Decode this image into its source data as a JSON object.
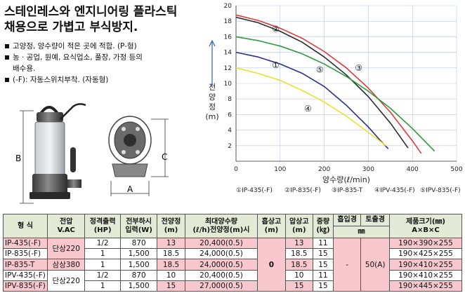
{
  "headline": [
    "스테인레스와 엔지니어링 플라스틱",
    "채용으로 가볍고 부식방지."
  ],
  "bullets": [
    {
      "text": "고양정, 양수량이 적은 곳에 적합. (P-형)"
    },
    {
      "text": "농 · 공업, 원예, 요식업소, 풀장, 가정 등의",
      "cont": "배수용."
    },
    {
      "text": "(-F): 자동스위치부착. (자동형)"
    }
  ],
  "dims": {
    "a": "A",
    "b": "B",
    "c": "C"
  },
  "chart_data": {
    "type": "line",
    "xlabel": "양수량(ℓ/min)",
    "ylabel": [
      "전",
      "양",
      "정",
      "(m)"
    ],
    "xlim": [
      0,
      500
    ],
    "ylim": [
      0,
      20
    ],
    "xticks": [
      "0",
      "100",
      "200",
      "300",
      "400",
      "500"
    ],
    "yticks": [
      "2",
      "4",
      "6",
      "8",
      "10",
      "12",
      "14",
      "16",
      "18",
      "20"
    ],
    "series": [
      {
        "name": "①IP-435(-F)",
        "marker": "①",
        "color": "#2e2e8c",
        "x": [
          0,
          50,
          100,
          150,
          200,
          250,
          300,
          325,
          345
        ],
        "y": [
          14,
          13.4,
          12.5,
          11.3,
          9.6,
          7.2,
          4.4,
          2.8,
          1.6
        ]
      },
      {
        "name": "②IP-835(-F)",
        "marker": "②",
        "color": "#2a2a2a",
        "x": [
          0,
          50,
          100,
          150,
          200,
          250,
          300,
          350,
          390
        ],
        "y": [
          18.5,
          17.8,
          16.7,
          15.3,
          13.4,
          11.1,
          8.3,
          4.9,
          1.7
        ]
      },
      {
        "name": "③IP-835-T",
        "marker": "③",
        "color": "#e23a3a",
        "x": [
          0,
          50,
          100,
          150,
          200,
          250,
          300,
          350,
          400,
          420
        ],
        "y": [
          18.8,
          18.1,
          17.1,
          15.8,
          14.1,
          12.0,
          9.4,
          6.3,
          2.6,
          1.0
        ]
      },
      {
        "name": "④IPV-435(-F)",
        "marker": "④",
        "color": "#e9e22c",
        "x": [
          0,
          50,
          100,
          150,
          200,
          250,
          300,
          340
        ],
        "y": [
          12,
          11.3,
          10.4,
          9.1,
          7.6,
          5.8,
          3.7,
          2.0
        ]
      },
      {
        "name": "⑤IPV-835(-F)",
        "marker": "⑤",
        "color": "#2e9a3e",
        "x": [
          0,
          50,
          100,
          150,
          200,
          250,
          300,
          350,
          400,
          450
        ],
        "y": [
          16,
          15.5,
          14.8,
          13.8,
          12.5,
          10.9,
          9.0,
          6.8,
          4.2,
          1.3
        ]
      }
    ],
    "labels": [
      {
        "text": "①",
        "x": 90,
        "y": 12
      },
      {
        "text": "②",
        "x": 90,
        "y": 16.6
      },
      {
        "text": "③",
        "x": 278,
        "y": 11.6
      },
      {
        "text": "④",
        "x": 163,
        "y": 6.4
      },
      {
        "text": "⑤",
        "x": 190,
        "y": 11.4
      }
    ],
    "legend": [
      "①IP-435(-F)",
      "②IP-835(-F)",
      "③IP-835-T",
      "④IPV-435(-F)",
      "⑤IPV-835(-F)"
    ],
    "grid": true
  },
  "table": {
    "headers": {
      "model": "형 식",
      "voltage": [
        "전압",
        "V.AC"
      ],
      "output": [
        "정격출력",
        "(HP)"
      ],
      "power": [
        "전부하시",
        "입력(W)"
      ],
      "head": [
        "전양정",
        "(m)"
      ],
      "maxflow": [
        "최대양수량",
        "(ℓ/h)전양정(m)시"
      ],
      "suction": [
        "흡상고",
        "(m)"
      ],
      "pressure": [
        "압상고",
        "(m)"
      ],
      "weight": [
        "중량",
        "(㎏)"
      ],
      "inlet": "흡입경",
      "outlet": "토출경",
      "diameter_unit": "㎜",
      "size": [
        "제품크기(㎜)",
        "A×B×C"
      ]
    },
    "voltage_groups": {
      "g1": "단상220",
      "g2": "삼상380",
      "g3": "단상220"
    },
    "suction_value": "0",
    "inlet_value": "-",
    "outlet_value": "50(A)",
    "rows": [
      {
        "model": "IP-435(-F)",
        "output": "1/2",
        "power": "870",
        "head": "13",
        "maxflow": "20,400(0.5)",
        "pressure": "13",
        "weight": "11",
        "size": "190×390×255"
      },
      {
        "model": "IP-835(-F)",
        "output": "1",
        "power": "1,500",
        "head": "18.5",
        "maxflow": "24,000(0.5)",
        "pressure": "18.5",
        "weight": "15",
        "size": "190×425×255"
      },
      {
        "model": "IP-835-T",
        "output": "1",
        "power": "1,500",
        "head": "18.5",
        "maxflow": "24,000(0.5)",
        "pressure": "18.5",
        "weight": "15",
        "size": "190×410×255"
      },
      {
        "model": "IPV-435(-F)",
        "output": "1/2",
        "power": "870",
        "head": "10",
        "maxflow": "20,400(0.5)",
        "pressure": "10",
        "weight": "11",
        "size": "190×410×255"
      },
      {
        "model": "IPV-835(-F)",
        "output": "1",
        "power": "1,500",
        "head": "15",
        "maxflow": "27,000(0.5)",
        "pressure": "15",
        "weight": "15",
        "size": "190×445×255"
      }
    ]
  }
}
